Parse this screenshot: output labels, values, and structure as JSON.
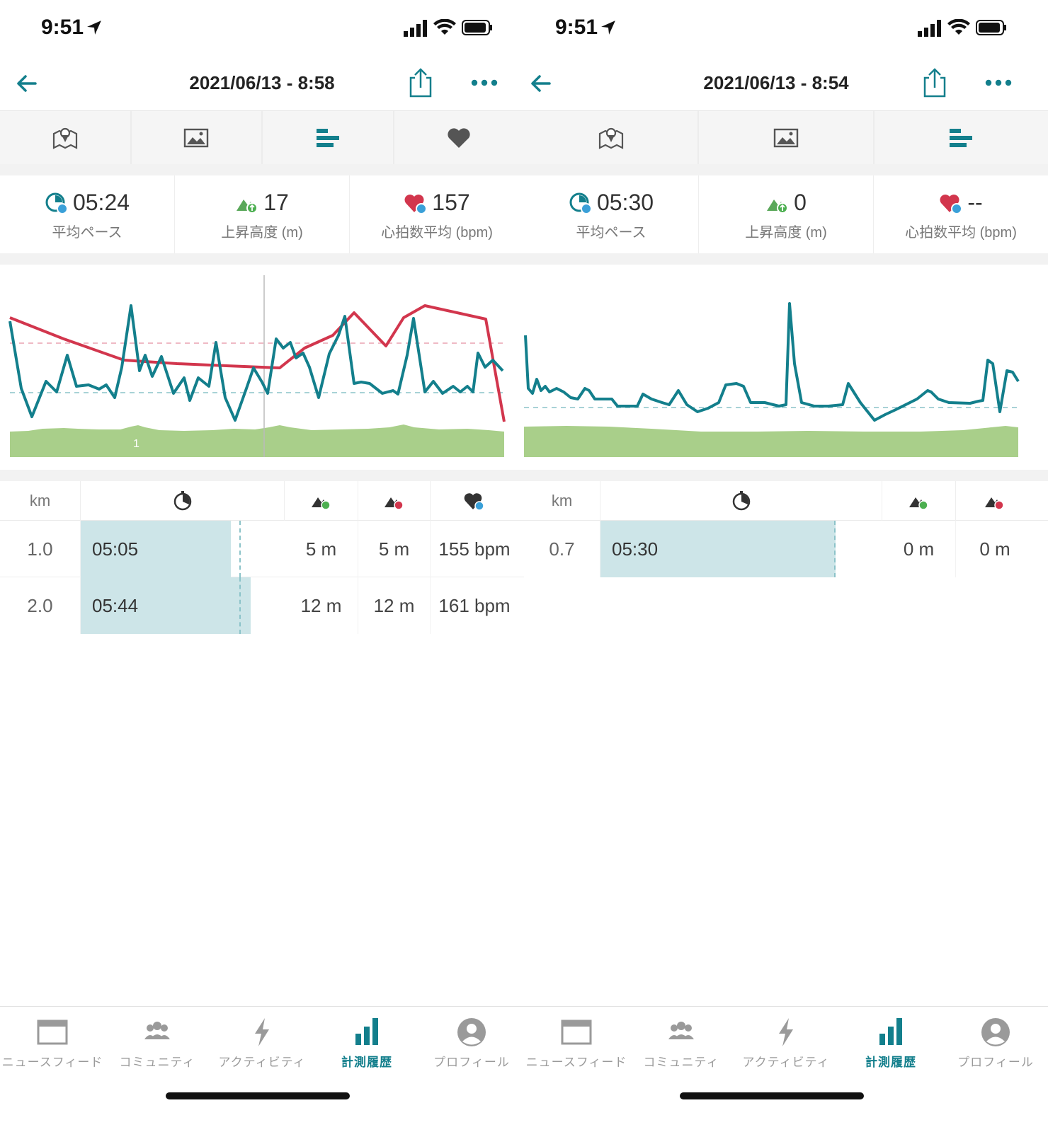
{
  "status_bar": {
    "time": "9:51"
  },
  "nav_icons": {
    "tabs": [
      "map-icon",
      "photo-icon",
      "splits-icon",
      "heart-icon"
    ]
  },
  "colors": {
    "teal": "#137f8c",
    "red": "#d2364d",
    "green": "#a9cf8a",
    "pace_bar": "#cde5e8"
  },
  "tab_bar": {
    "items": [
      {
        "label": "ニュースフィード",
        "icon": "newsfeed-icon"
      },
      {
        "label": "コミュニティ",
        "icon": "community-icon"
      },
      {
        "label": "アクティビティ",
        "icon": "activity-bolt-icon"
      },
      {
        "label": "計測履歴",
        "icon": "history-bars-icon",
        "active": true
      },
      {
        "label": "プロフィール",
        "icon": "profile-icon"
      }
    ]
  },
  "split_headers": {
    "km": "km"
  },
  "left": {
    "title": "2021/06/13 - 8:58",
    "stats": {
      "pace": {
        "value": "05:24",
        "label": "平均ペース"
      },
      "elevation": {
        "value": "17",
        "label": "上昇高度 (m)"
      },
      "heart_rate": {
        "value": "157",
        "label": "心拍数平均 (bpm)"
      }
    },
    "chart_marker_label": "1",
    "splits": [
      {
        "km": "1.0",
        "pace": "05:05",
        "pace_fraction": 0.68,
        "up": "5 m",
        "down": "5 m",
        "hr": "155 bpm"
      },
      {
        "km": "2.0",
        "pace": "05:44",
        "pace_fraction": 0.77,
        "up": "12 m",
        "down": "12 m",
        "hr": "161 bpm"
      }
    ]
  },
  "right": {
    "title": "2021/06/13 - 8:54",
    "stats": {
      "pace": {
        "value": "05:30",
        "label": "平均ペース"
      },
      "elevation": {
        "value": "0",
        "label": "上昇高度 (m)"
      },
      "heart_rate": {
        "value": "--",
        "label": "心拍数平均 (bpm)"
      }
    },
    "splits": [
      {
        "km": "0.7",
        "pace": "05:30",
        "pace_fraction": 0.85,
        "up": "0 m",
        "down": "0 m"
      }
    ]
  }
}
